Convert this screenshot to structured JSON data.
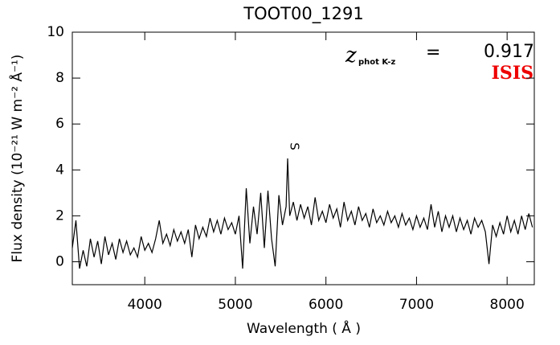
{
  "chart_data": {
    "type": "line",
    "title": "TOOT00_1291",
    "xlabel": "Wavelength ( Å )",
    "ylabel": "Flux density (10⁻²¹ W m⁻² Å⁻¹)",
    "annotations": {
      "z": "z",
      "z_sub": "phot K-z",
      "equals": "=",
      "z_value": "0.917",
      "instrument": "ISIS",
      "instrument_color": "#ee0000",
      "line_label": "S"
    },
    "xlim": [
      3200,
      8300
    ],
    "ylim": [
      -1,
      10
    ],
    "xticks": [
      4000,
      5000,
      6000,
      7000,
      8000
    ],
    "yticks": [
      0,
      2,
      4,
      6,
      8,
      10
    ],
    "series": [
      {
        "color": "#000000",
        "x": [
          3200,
          3240,
          3280,
          3320,
          3360,
          3400,
          3440,
          3480,
          3520,
          3560,
          3600,
          3640,
          3680,
          3720,
          3760,
          3800,
          3840,
          3880,
          3920,
          3960,
          4000,
          4040,
          4080,
          4120,
          4160,
          4200,
          4240,
          4280,
          4320,
          4360,
          4400,
          4440,
          4480,
          4520,
          4560,
          4600,
          4640,
          4680,
          4720,
          4760,
          4800,
          4840,
          4880,
          4920,
          4960,
          5000,
          5040,
          5080,
          5120,
          5160,
          5200,
          5240,
          5280,
          5320,
          5360,
          5400,
          5440,
          5480,
          5520,
          5560,
          5577,
          5600,
          5640,
          5680,
          5720,
          5760,
          5800,
          5840,
          5880,
          5920,
          5960,
          6000,
          6040,
          6080,
          6120,
          6160,
          6200,
          6240,
          6280,
          6320,
          6360,
          6400,
          6440,
          6480,
          6520,
          6560,
          6600,
          6640,
          6680,
          6720,
          6760,
          6800,
          6840,
          6880,
          6920,
          6960,
          7000,
          7040,
          7080,
          7120,
          7160,
          7200,
          7240,
          7280,
          7320,
          7360,
          7400,
          7440,
          7480,
          7520,
          7560,
          7600,
          7640,
          7680,
          7720,
          7760,
          7800,
          7840,
          7880,
          7920,
          7960,
          8000,
          8040,
          8080,
          8120,
          8160,
          8200,
          8240,
          8280
        ],
        "values": [
          0.6,
          1.8,
          -0.3,
          0.5,
          -0.2,
          1.0,
          0.2,
          0.9,
          -0.1,
          1.1,
          0.3,
          0.8,
          0.1,
          1.0,
          0.4,
          0.9,
          0.3,
          0.6,
          0.2,
          1.1,
          0.5,
          0.8,
          0.4,
          1.0,
          1.8,
          0.8,
          1.2,
          0.7,
          1.4,
          0.9,
          1.3,
          0.8,
          1.4,
          0.2,
          1.6,
          1.0,
          1.5,
          1.1,
          1.9,
          1.3,
          1.8,
          1.2,
          1.9,
          1.4,
          1.7,
          1.2,
          2.0,
          -0.3,
          3.2,
          0.8,
          2.4,
          1.2,
          3.0,
          0.6,
          3.1,
          1.0,
          -0.2,
          2.9,
          1.6,
          2.4,
          4.5,
          2.0,
          2.6,
          1.8,
          2.5,
          1.9,
          2.4,
          1.6,
          2.8,
          1.8,
          2.2,
          1.7,
          2.5,
          1.9,
          2.3,
          1.5,
          2.6,
          1.8,
          2.2,
          1.6,
          2.4,
          1.8,
          2.1,
          1.5,
          2.3,
          1.7,
          2.0,
          1.6,
          2.2,
          1.7,
          2.0,
          1.5,
          2.1,
          1.6,
          1.9,
          1.4,
          2.0,
          1.5,
          1.9,
          1.4,
          2.5,
          1.5,
          2.2,
          1.3,
          2.0,
          1.5,
          2.0,
          1.3,
          1.9,
          1.4,
          1.8,
          1.2,
          1.9,
          1.5,
          1.8,
          1.3,
          -0.1,
          1.6,
          1.1,
          1.7,
          1.2,
          2.0,
          1.3,
          1.8,
          1.2,
          2.0,
          1.4,
          2.1,
          1.5
        ]
      }
    ]
  }
}
